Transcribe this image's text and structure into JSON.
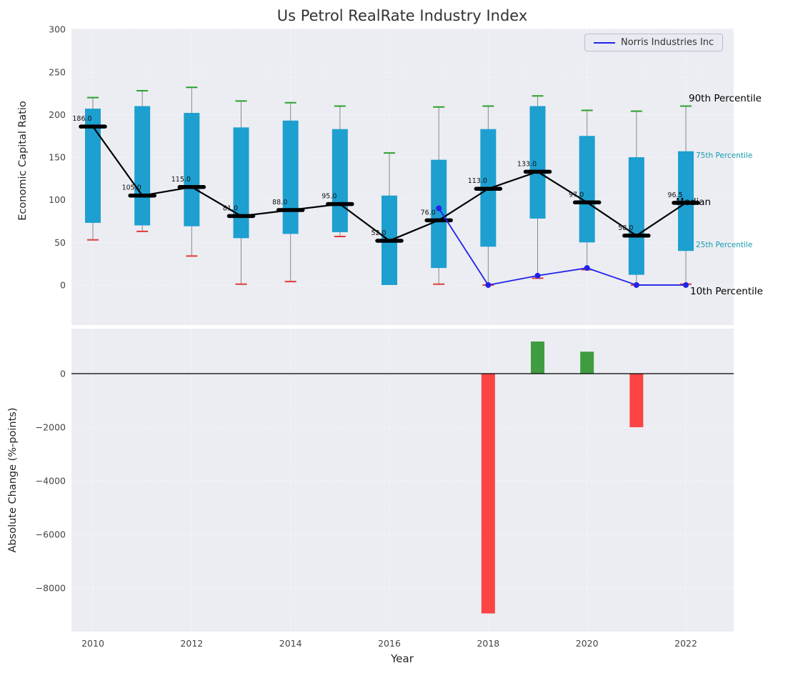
{
  "title": "Us Petrol RealRate Industry Index",
  "axes": {
    "top_ylabel": "Economic Capital Ratio",
    "bottom_ylabel": "Absolute Change (%-points)",
    "xlabel": "Year"
  },
  "legend": {
    "norris_label": "Norris Industries Inc"
  },
  "annotations": {
    "p90": "90th Percentile",
    "p75": "75th Percentile",
    "median": "Median",
    "p25": "25th Percentile",
    "p10": "10th Percentile"
  },
  "colors": {
    "panel_bg": "#ebedf2",
    "grid": "#f8f8fb",
    "box": "#1d9fd0",
    "whisker": "#888888",
    "cap_high": "#2ca02c",
    "cap_low": "#e03a3a",
    "median_line": "#000000",
    "bar_pos": "#3f9c3f",
    "bar_neg": "#fb4444",
    "norris": "#2222e8",
    "annotation_teal": "#1899b2",
    "tick": "#444444"
  },
  "chart_data": [
    {
      "type": "boxplot",
      "panel": "top",
      "title": "Us Petrol RealRate Industry Index",
      "ylabel": "Economic Capital Ratio",
      "years": [
        2010,
        2011,
        2012,
        2013,
        2014,
        2015,
        2016,
        2017,
        2018,
        2019,
        2020,
        2021,
        2022
      ],
      "whisker_high": [
        220,
        228,
        232,
        216,
        214,
        210,
        155,
        209,
        210,
        222,
        205,
        204,
        210
      ],
      "box_high": [
        207,
        210,
        202,
        185,
        193,
        183,
        105,
        147,
        183,
        210,
        175,
        150,
        157
      ],
      "median": [
        186,
        105,
        115,
        81,
        88,
        95,
        52,
        76,
        113,
        133,
        97,
        58,
        96.5
      ],
      "box_low": [
        73,
        70,
        69,
        55,
        60,
        62,
        0,
        20,
        45,
        78,
        50,
        12,
        40
      ],
      "whisker_low": [
        53,
        63,
        34,
        1,
        4,
        57,
        2,
        1,
        0,
        8,
        18,
        0,
        1
      ],
      "median_labels": [
        "186.0",
        "105.0",
        "115.0",
        "81.0",
        "88.0",
        "95.0",
        "52.0",
        "76.0",
        "113.0",
        "133.0",
        "97.0",
        "58.0",
        "96.5"
      ],
      "yticks": [
        0,
        50,
        100,
        150,
        200,
        250,
        300
      ],
      "ylim": [
        -47,
        301
      ],
      "grid": true,
      "legend_position": "upper right",
      "series": [
        {
          "name": "Norris Industries Inc",
          "x": [
            2017,
            2018,
            2019,
            2020,
            2021,
            2022
          ],
          "y": [
            90,
            0,
            11,
            20,
            0,
            0
          ]
        }
      ]
    },
    {
      "type": "bar",
      "panel": "bottom",
      "ylabel": "Absolute Change (%-points)",
      "xlabel": "Year",
      "years": [
        2010,
        2011,
        2012,
        2013,
        2014,
        2015,
        2016,
        2017,
        2018,
        2019,
        2020,
        2021,
        2022
      ],
      "values": [
        0,
        0,
        0,
        0,
        0,
        0,
        0,
        0,
        -8950,
        1200,
        820,
        -2000,
        0
      ],
      "yticks": [
        0,
        -2000,
        -4000,
        -6000,
        -8000
      ],
      "xticks": [
        2010,
        2012,
        2014,
        2016,
        2018,
        2020,
        2022
      ],
      "ylim": [
        -9630,
        1680
      ],
      "grid": true
    }
  ]
}
